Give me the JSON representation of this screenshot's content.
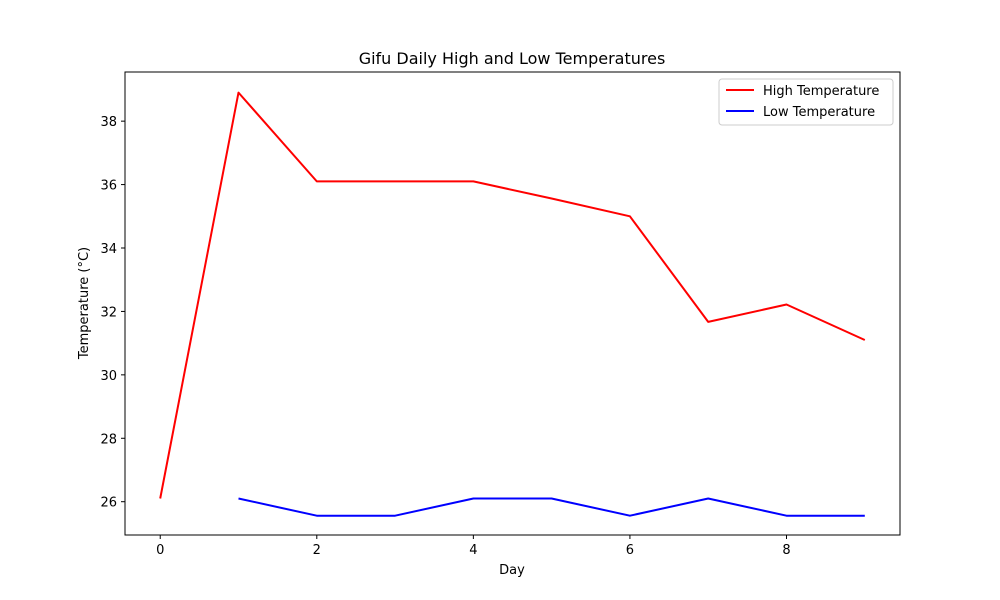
{
  "chart_data": {
    "type": "line",
    "title": "Gifu Daily High and Low Temperatures",
    "xlabel": "Day",
    "ylabel": "Temperature (°C)",
    "xlim": [
      -0.45,
      9.45
    ],
    "ylim": [
      24.95,
      39.55
    ],
    "xticks": [
      0,
      2,
      4,
      6,
      8
    ],
    "yticks": [
      26,
      28,
      30,
      32,
      34,
      36,
      38
    ],
    "grid": false,
    "legend_position": "top-right",
    "series": [
      {
        "name": "High Temperature",
        "color": "#ff0000",
        "x": [
          0,
          1,
          2,
          3,
          4,
          5,
          6,
          7,
          8,
          9
        ],
        "values": [
          26.1,
          38.9,
          36.1,
          36.1,
          36.1,
          35.56,
          35.0,
          31.67,
          32.22,
          31.1
        ]
      },
      {
        "name": "Low Temperature",
        "color": "#0000ff",
        "x": [
          1,
          2,
          3,
          4,
          5,
          6,
          7,
          8,
          9
        ],
        "values": [
          26.1,
          25.56,
          25.56,
          26.1,
          26.1,
          25.56,
          26.1,
          25.56,
          25.56
        ]
      }
    ]
  }
}
